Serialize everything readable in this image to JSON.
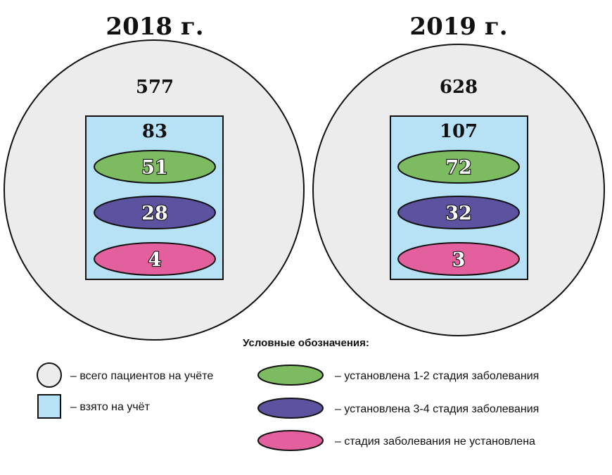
{
  "colors": {
    "circle": "#ececec",
    "rect": "#b7e2f6",
    "stage12": "#7dbb61",
    "stage34": "#5b53a0",
    "unknown": "#e45f9d",
    "stroke": "#111111"
  },
  "panels": [
    {
      "year": "2018 г.",
      "total": "577",
      "registered": "83",
      "stage12": "51",
      "stage34": "28",
      "unknown": "4"
    },
    {
      "year": "2019 г.",
      "total": "628",
      "registered": "107",
      "stage12": "72",
      "stage34": "32",
      "unknown": "3"
    }
  ],
  "legend": {
    "title": "Условные обозначения:",
    "items": {
      "total": "– всего пациентов на учёте",
      "registered": "– взято на учёт",
      "stage12": "– установлена 1-2 стадия заболевания",
      "stage34": "– установлена 3-4 стадия заболевания",
      "unknown": "– стадия заболевания не установлена"
    }
  }
}
